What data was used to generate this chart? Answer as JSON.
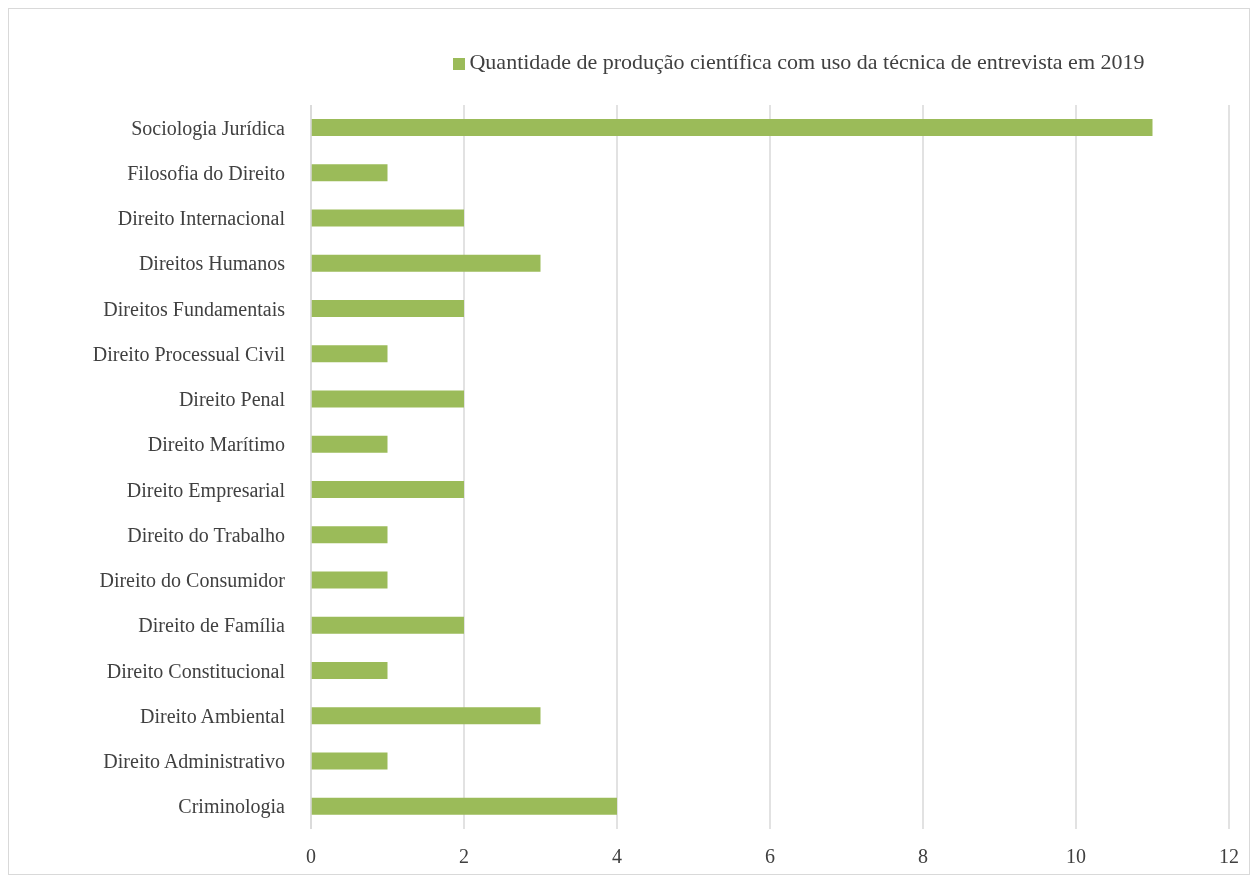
{
  "chart_data": {
    "type": "bar",
    "orientation": "horizontal",
    "categories": [
      "Sociologia Jurídica",
      "Filosofia do Direito",
      "Direito Internacional",
      "Direitos Humanos",
      "Direitos Fundamentais",
      "Direito Processual Civil",
      "Direito Penal",
      "Direito Marítimo",
      "Direito Empresarial",
      "Direito do Trabalho",
      "Direito do Consumidor",
      "Direito de Família",
      "Direito Constitucional",
      "Direito Ambiental",
      "Direito Administrativo",
      "Criminologia"
    ],
    "series": [
      {
        "name": "Quantidade de produção científica com uso da técnica de entrevista em 2019",
        "color": "#9bbb59",
        "values": [
          11,
          1,
          2,
          3,
          2,
          1,
          2,
          1,
          2,
          1,
          1,
          2,
          1,
          3,
          1,
          4
        ]
      }
    ],
    "xlim": [
      0,
      12
    ],
    "xticks": [
      0,
      2,
      4,
      6,
      8,
      10,
      12
    ],
    "grid": "x",
    "legend": "top"
  }
}
